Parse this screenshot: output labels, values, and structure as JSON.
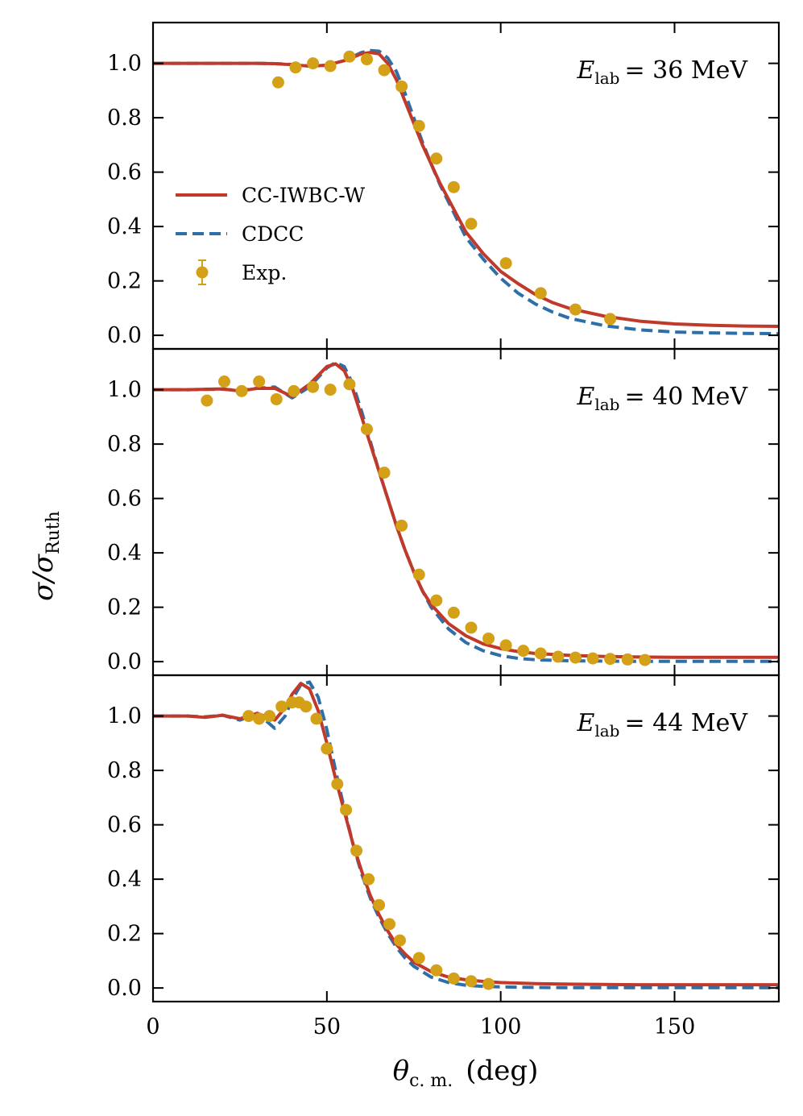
{
  "chart_data": {
    "type": "line",
    "xlabel": "θ",
    "xlabel_sub": "c. m.",
    "xlabel_unit": "(deg)",
    "ylabel": "σ/σ",
    "ylabel_sub": "Ruth",
    "xlim": [
      0,
      180
    ],
    "ylim": [
      -0.05,
      1.15
    ],
    "x_ticks": [
      0,
      50,
      100,
      150
    ],
    "x_tick_labels": [
      "0",
      "50",
      "100",
      "150"
    ],
    "y_ticks": [
      0.0,
      0.2,
      0.4,
      0.6,
      0.8,
      1.0
    ],
    "y_tick_labels": [
      "0.0",
      "0.2",
      "0.4",
      "0.6",
      "0.8",
      "1.0"
    ],
    "legend": {
      "position": "left",
      "entries": [
        {
          "label": "CC-IWBC-W",
          "style": "solid",
          "color": "#c0392b"
        },
        {
          "label": "CDCC",
          "style": "dashed",
          "color": "#2e6fa8"
        },
        {
          "label": "Exp.",
          "style": "marker",
          "color": "#d4a017"
        }
      ]
    },
    "colors": {
      "cc": "#c0392b",
      "cdcc": "#2e6fa8",
      "exp": "#d4a017"
    },
    "panels": [
      {
        "energy_label": "E",
        "energy_sub": "lab",
        "energy_value": "= 36 MeV",
        "cc_iwbc_w": {
          "x": [
            0,
            10,
            20,
            30,
            35,
            40,
            45,
            50,
            55,
            60,
            62.5,
            65,
            67.5,
            70,
            72.5,
            75,
            77.5,
            80,
            82.5,
            85,
            87.5,
            90,
            95,
            100,
            105,
            110,
            115,
            120,
            130,
            140,
            150,
            160,
            170,
            180
          ],
          "y": [
            1.0,
            1.0,
            1.0,
            1.0,
            0.999,
            0.995,
            0.99,
            0.993,
            1.01,
            1.035,
            1.04,
            1.035,
            1.0,
            0.94,
            0.86,
            0.78,
            0.7,
            0.63,
            0.56,
            0.5,
            0.44,
            0.38,
            0.3,
            0.235,
            0.19,
            0.15,
            0.12,
            0.098,
            0.07,
            0.052,
            0.042,
            0.037,
            0.034,
            0.033
          ]
        },
        "cdcc": {
          "x": [
            0,
            10,
            20,
            30,
            35,
            40,
            45,
            50,
            55,
            60,
            62.5,
            65,
            67.5,
            70,
            72.5,
            75,
            77.5,
            80,
            82.5,
            85,
            87.5,
            90,
            95,
            100,
            105,
            110,
            115,
            120,
            130,
            140,
            150,
            160,
            170,
            180
          ],
          "y": [
            1.0,
            1.0,
            1.0,
            1.0,
            0.999,
            0.996,
            0.99,
            0.993,
            1.01,
            1.04,
            1.047,
            1.045,
            1.02,
            0.97,
            0.89,
            0.8,
            0.71,
            0.63,
            0.555,
            0.49,
            0.425,
            0.36,
            0.28,
            0.21,
            0.155,
            0.115,
            0.085,
            0.062,
            0.035,
            0.02,
            0.012,
            0.009,
            0.007,
            0.006
          ]
        },
        "exp": {
          "x": [
            36,
            41,
            46,
            51,
            56.5,
            61.5,
            66.5,
            71.5,
            76.5,
            81.5,
            86.5,
            91.5,
            101.5,
            111.5,
            121.5,
            131.5
          ],
          "y": [
            0.93,
            0.985,
            1.0,
            0.99,
            1.025,
            1.015,
            0.975,
            0.915,
            0.77,
            0.65,
            0.545,
            0.41,
            0.265,
            0.155,
            0.095,
            0.06
          ]
        }
      },
      {
        "energy_label": "E",
        "energy_sub": "lab",
        "energy_value": "= 40 MeV",
        "cc_iwbc_w": {
          "x": [
            0,
            10,
            20,
            25,
            30,
            35,
            40,
            45,
            50,
            52.5,
            55,
            57.5,
            60,
            62.5,
            65,
            67.5,
            70,
            72.5,
            75,
            77.5,
            80,
            85,
            90,
            95,
            100,
            105,
            110,
            120,
            130,
            140,
            150,
            160,
            170,
            180
          ],
          "y": [
            1.0,
            1.0,
            1.003,
            0.995,
            1.005,
            1.005,
            0.975,
            1.02,
            1.085,
            1.095,
            1.07,
            1.0,
            0.9,
            0.8,
            0.7,
            0.6,
            0.5,
            0.41,
            0.33,
            0.26,
            0.21,
            0.14,
            0.095,
            0.065,
            0.048,
            0.037,
            0.03,
            0.023,
            0.019,
            0.017,
            0.016,
            0.016,
            0.016,
            0.016
          ]
        },
        "cdcc": {
          "x": [
            0,
            10,
            20,
            25,
            30,
            35,
            40,
            45,
            50,
            52.5,
            55,
            57.5,
            60,
            62.5,
            65,
            67.5,
            70,
            72.5,
            75,
            77.5,
            80,
            85,
            90,
            95,
            100,
            105,
            110,
            120,
            130,
            140,
            150,
            160,
            170,
            180
          ],
          "y": [
            1.0,
            1.0,
            1.002,
            0.997,
            1.005,
            1.01,
            0.97,
            1.01,
            1.08,
            1.1,
            1.085,
            1.02,
            0.92,
            0.81,
            0.7,
            0.6,
            0.5,
            0.41,
            0.33,
            0.26,
            0.2,
            0.12,
            0.07,
            0.04,
            0.022,
            0.012,
            0.007,
            0.003,
            0.002,
            0.001,
            0.001,
            0.001,
            0.001,
            0.001
          ]
        },
        "exp": {
          "x": [
            15.5,
            20.5,
            25.5,
            30.5,
            35.5,
            40.5,
            46,
            51,
            56.5,
            61.5,
            66.5,
            71.5,
            76.5,
            81.5,
            86.5,
            91.5,
            96.5,
            101.5,
            106.5,
            111.5,
            116.5,
            121.5,
            126.5,
            131.5,
            136.5,
            141.5
          ],
          "y": [
            0.96,
            1.03,
            0.995,
            1.03,
            0.965,
            0.995,
            1.01,
            1.0,
            1.02,
            0.855,
            0.695,
            0.5,
            0.32,
            0.225,
            0.18,
            0.125,
            0.085,
            0.06,
            0.04,
            0.03,
            0.018,
            0.015,
            0.012,
            0.01,
            0.008,
            0.006
          ]
        }
      },
      {
        "energy_label": "E",
        "energy_sub": "lab",
        "energy_value": "= 44 MeV",
        "cc_iwbc_w": {
          "x": [
            0,
            10,
            15,
            20,
            25,
            30,
            35,
            38,
            40,
            42.5,
            45,
            47.5,
            50,
            52.5,
            55,
            57.5,
            60,
            62.5,
            65,
            67.5,
            70,
            72.5,
            75,
            80,
            85,
            90,
            95,
            100,
            110,
            120,
            130,
            140,
            150,
            160,
            170,
            180
          ],
          "y": [
            1.0,
            1.0,
            0.995,
            1.003,
            0.99,
            1.01,
            0.985,
            1.03,
            1.08,
            1.12,
            1.1,
            1.02,
            0.9,
            0.77,
            0.65,
            0.53,
            0.43,
            0.34,
            0.27,
            0.21,
            0.16,
            0.125,
            0.095,
            0.06,
            0.04,
            0.03,
            0.024,
            0.02,
            0.016,
            0.014,
            0.013,
            0.012,
            0.012,
            0.012,
            0.012,
            0.012
          ]
        },
        "cdcc": {
          "x": [
            0,
            10,
            15,
            20,
            25,
            30,
            35,
            38,
            40,
            42.5,
            45,
            47.5,
            50,
            52.5,
            55,
            57.5,
            60,
            62.5,
            65,
            67.5,
            70,
            72.5,
            75,
            80,
            85,
            90,
            95,
            100,
            110,
            120,
            130,
            140,
            150,
            160,
            170,
            180
          ],
          "y": [
            1.0,
            1.0,
            0.997,
            1.003,
            0.985,
            1.01,
            0.955,
            1.0,
            1.06,
            1.115,
            1.125,
            1.07,
            0.95,
            0.8,
            0.66,
            0.53,
            0.42,
            0.33,
            0.26,
            0.2,
            0.15,
            0.11,
            0.08,
            0.04,
            0.02,
            0.01,
            0.006,
            0.004,
            0.002,
            0.001,
            0.001,
            0.001,
            0.001,
            0.001,
            0.001,
            0.001
          ]
        },
        "exp": {
          "x": [
            27.5,
            30.5,
            33.5,
            37,
            40,
            42,
            44,
            47,
            50,
            53,
            55.5,
            58.5,
            62,
            65,
            68,
            71,
            76.5,
            81.5,
            86.5,
            91.5,
            96.5
          ],
          "y": [
            1.0,
            0.99,
            1.0,
            1.035,
            1.05,
            1.05,
            1.035,
            0.99,
            0.88,
            0.75,
            0.655,
            0.505,
            0.4,
            0.305,
            0.235,
            0.175,
            0.11,
            0.065,
            0.035,
            0.025,
            0.015
          ]
        }
      }
    ]
  }
}
